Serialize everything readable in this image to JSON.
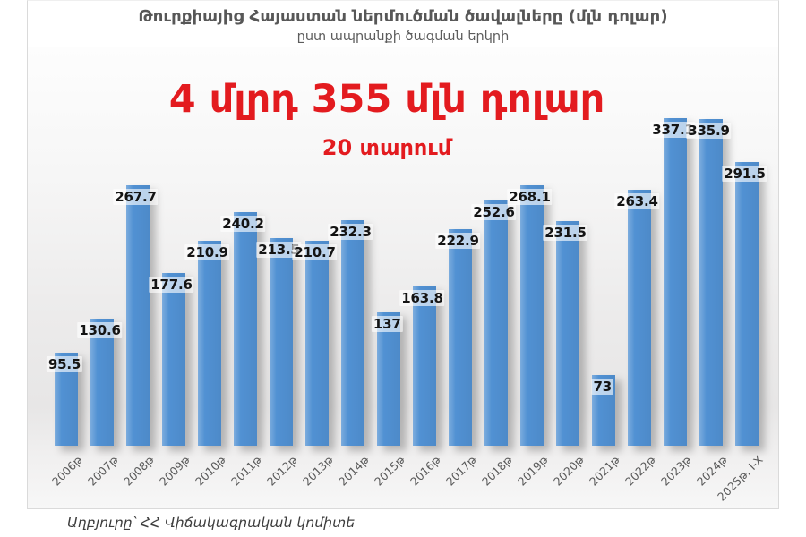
{
  "header": {
    "title": "Թուրքիայից Հայաստան ներմուծման ծավալները (մլն դոլար)",
    "subtitle": "ըստ ապրանքի ծագման երկրի"
  },
  "headline": {
    "main": "4 մլրդ 355 մլն դոլար",
    "sub": "20 տարում"
  },
  "footer": {
    "source": "Աղբյուրը՝ ՀՀ Վիճակագրական կոմիտե"
  },
  "colors": {
    "bar": "#5191d3",
    "headline_red": "#e31b1f",
    "title_gray": "#575757",
    "value_label_text": "#141414",
    "tick_gray": "#595959"
  },
  "chart_data": {
    "type": "bar",
    "title": "Թուրքիայից Հայաստան ներմուծման ծավալները (մլն դոլար)",
    "subtitle": "ըստ ապրանքի ծագման երկրի",
    "annotation": "4 մլրդ 355 մլն դոլար — 20 տարում",
    "categories": [
      "2006թ",
      "2007թ",
      "2008թ",
      "2009թ",
      "2010թ",
      "2011թ",
      "2012թ",
      "2013թ",
      "2014թ",
      "2015թ",
      "2016թ",
      "2017թ",
      "2018թ",
      "2019թ",
      "2020թ",
      "2021թ",
      "2022թ",
      "2023թ",
      "2024թ",
      "2025թ, I-X"
    ],
    "values": [
      95.5,
      130.6,
      267.7,
      177.6,
      210.9,
      240.2,
      213.5,
      210.7,
      232.3,
      137,
      163.8,
      222.9,
      252.6,
      268.1,
      231.5,
      73,
      263.4,
      337.1,
      335.9,
      291.5
    ],
    "xlabel": "",
    "ylabel": "",
    "ylim": [
      0,
      360
    ],
    "grid": false,
    "legend": false,
    "data_labels": true,
    "data_label_position": "inside-end",
    "source": "Աղբյուրը՝ ՀՀ Վիճակագրական կոմիտե"
  }
}
